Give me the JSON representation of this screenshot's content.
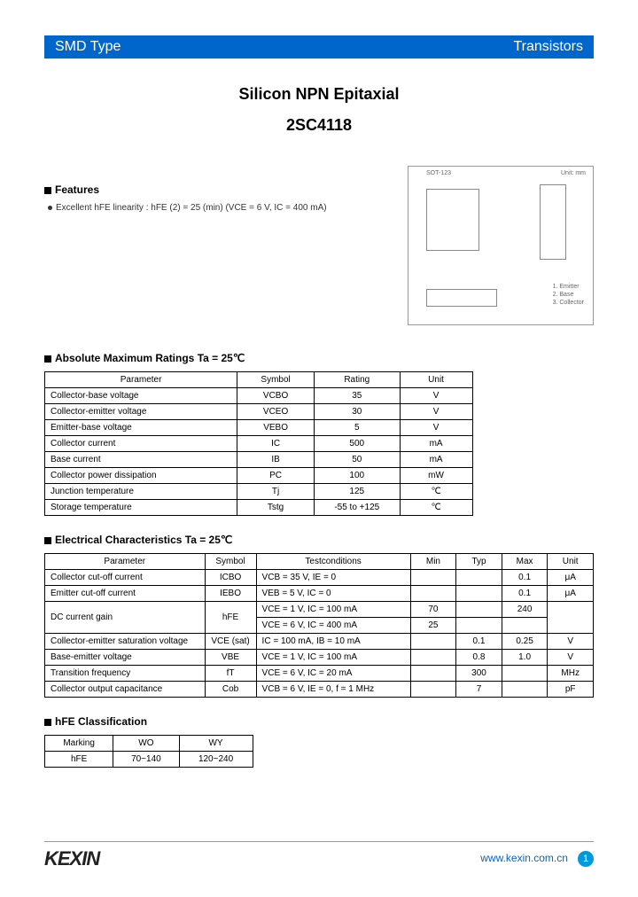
{
  "header": {
    "left": "SMD Type",
    "right": "Transistors"
  },
  "title": {
    "line1": "Silicon NPN Epitaxial",
    "line2": "2SC4118"
  },
  "features": {
    "heading": "Features",
    "item": "Excellent hFE linearity : hFE (2) = 25 (min) (VCE = 6 V, IC = 400 mA)"
  },
  "package": {
    "label": "SOT-123",
    "unit": "Unit: mm",
    "pins": [
      "1. Emitter",
      "2. Base",
      "3. Collector"
    ]
  },
  "ratings": {
    "heading": "Absolute Maximum Ratings Ta = 25℃",
    "columns": [
      "Parameter",
      "Symbol",
      "Rating",
      "Unit"
    ],
    "rows": [
      [
        "Collector-base voltage",
        "VCBO",
        "35",
        "V"
      ],
      [
        "Collector-emitter voltage",
        "VCEO",
        "30",
        "V"
      ],
      [
        "Emitter-base voltage",
        "VEBO",
        "5",
        "V"
      ],
      [
        "Collector current",
        "IC",
        "500",
        "mA"
      ],
      [
        "Base current",
        "IB",
        "50",
        "mA"
      ],
      [
        "Collector power dissipation",
        "PC",
        "100",
        "mW"
      ],
      [
        "Junction temperature",
        "Tj",
        "125",
        "℃"
      ],
      [
        "Storage temperature",
        "Tstg",
        "-55 to +125",
        "℃"
      ]
    ]
  },
  "elec": {
    "heading": "Electrical Characteristics Ta = 25℃",
    "columns": [
      "Parameter",
      "Symbol",
      "Testconditions",
      "Min",
      "Typ",
      "Max",
      "Unit"
    ],
    "rows": [
      {
        "p": "Collector cut-off current",
        "s": "ICBO",
        "tc": "VCB = 35 V, IE = 0",
        "min": "",
        "typ": "",
        "max": "0.1",
        "u": "μA",
        "rs": 1
      },
      {
        "p": "Emitter cut-off current",
        "s": "IEBO",
        "tc": "VEB = 5 V, IC = 0",
        "min": "",
        "typ": "",
        "max": "0.1",
        "u": "μA",
        "rs": 1
      },
      {
        "p": "DC current gain",
        "s": "hFE",
        "tc": "VCE = 1 V, IC = 100 mA",
        "min": "70",
        "typ": "",
        "max": "240",
        "u": "",
        "rs": 2
      },
      {
        "tc": "VCE = 6 V, IC = 400 mA",
        "min": "25",
        "typ": "",
        "max": "",
        "u": ""
      },
      {
        "p": "Collector-emitter saturation voltage",
        "s": "VCE (sat)",
        "tc": "IC = 100 mA, IB = 10 mA",
        "min": "",
        "typ": "0.1",
        "max": "0.25",
        "u": "V",
        "rs": 1
      },
      {
        "p": "Base-emitter voltage",
        "s": "VBE",
        "tc": "VCE = 1 V, IC = 100 mA",
        "min": "",
        "typ": "0.8",
        "max": "1.0",
        "u": "V",
        "rs": 1
      },
      {
        "p": "Transition frequency",
        "s": "fT",
        "tc": "VCE = 6 V, IC = 20 mA",
        "min": "",
        "typ": "300",
        "max": "",
        "u": "MHz",
        "rs": 1
      },
      {
        "p": "Collector output capacitance",
        "s": "Cob",
        "tc": "VCB = 6 V, IE = 0, f = 1 MHz",
        "min": "",
        "typ": "7",
        "max": "",
        "u": "pF",
        "rs": 1
      }
    ]
  },
  "classif": {
    "heading": "hFE Classification",
    "columns": [
      "Marking",
      "WO",
      "WY"
    ],
    "row": [
      "hFE",
      "70~140",
      "120~240"
    ]
  },
  "footer": {
    "logo": "KEXIN",
    "url": "www.kexin.com.cn",
    "page": "1"
  },
  "colors": {
    "header_bg": "#0066cc",
    "link": "#0066cc",
    "pagenum_bg": "#0099dd"
  }
}
